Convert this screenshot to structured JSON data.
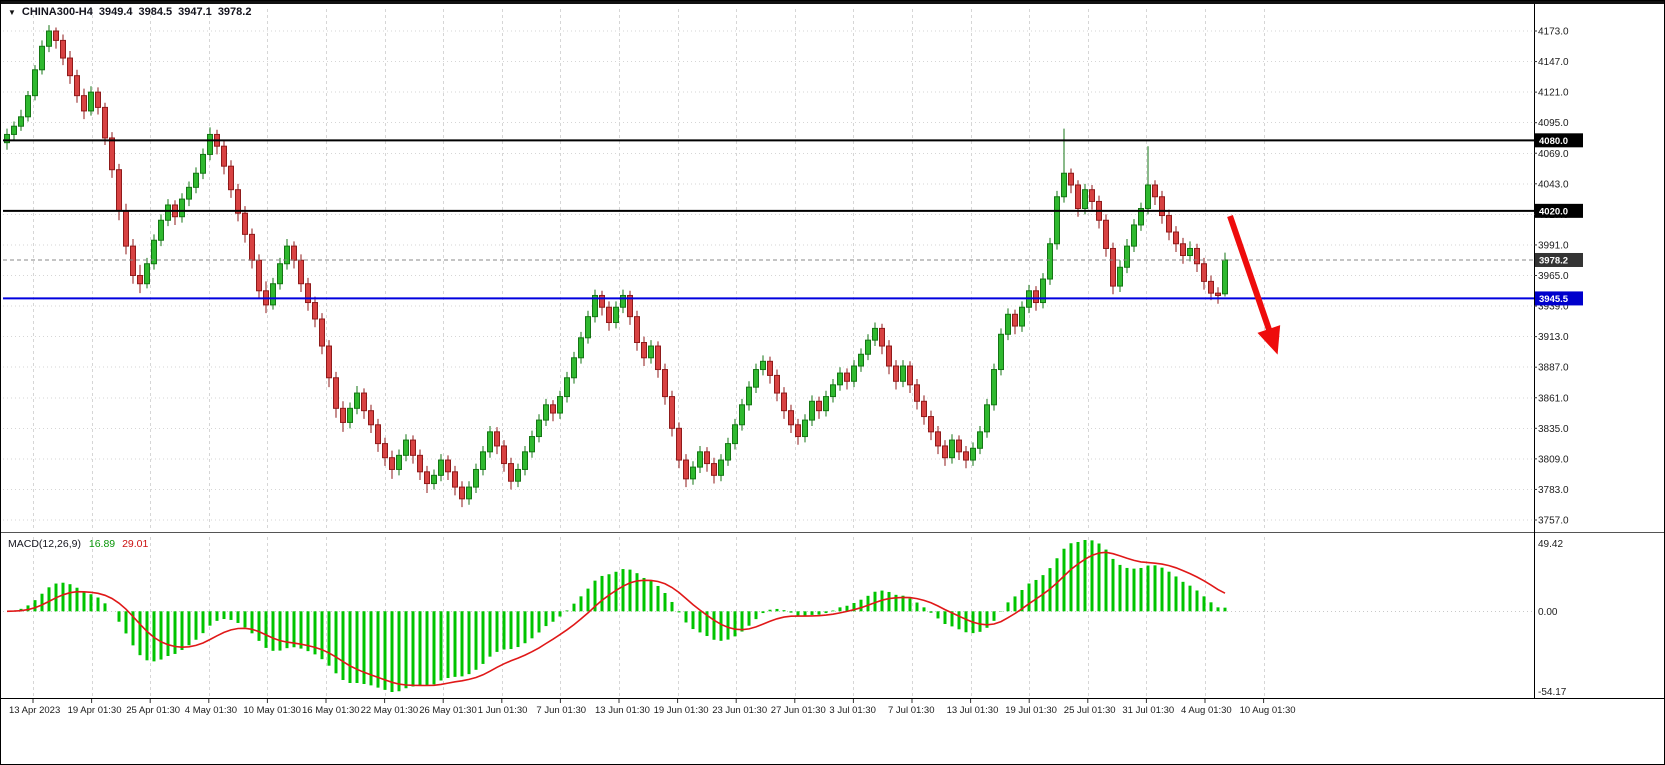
{
  "header": {
    "symbol": "CHINA300-H4",
    "open": "3949.4",
    "high": "3984.5",
    "low": "3947.1",
    "close": "3978.2"
  },
  "macd": {
    "label": "MACD(12,26,9)",
    "value_main": "16.89",
    "value_signal": "29.01",
    "axis": {
      "max": "49.42",
      "zero": "0.00",
      "min": "-54.17"
    }
  },
  "colors": {
    "bull_fill": "#2fb92f",
    "bull_stroke": "#147514",
    "bear_fill": "#d84242",
    "bear_stroke": "#8f1a1a",
    "grid": "#d6d6d6",
    "level_black": "#000000",
    "level_blue": "#0000df",
    "current_line": "#8a8a8a",
    "badge_black": "#000000",
    "badge_blue": "#0000cc",
    "badge_current": "#343434",
    "macd_bar": "#00c400",
    "macd_signal": "#e01818",
    "arrow": "#ee0c0c",
    "axis_text": "#1c1c1c"
  },
  "chart_data": {
    "type": "candlestick",
    "title": "CHINA300-H4",
    "timeframe": "H4",
    "current_bar": {
      "open": 3949.4,
      "high": 3984.5,
      "low": 3947.1,
      "close": 3978.2
    },
    "price_ticks": [
      4173,
      4147,
      4121,
      4095,
      4069,
      4043,
      4017,
      3991,
      3965,
      3939,
      3913,
      3887,
      3861,
      3835,
      3809,
      3783,
      3757
    ],
    "time_labels": [
      "13 Apr 2023",
      "19 Apr 01:30",
      "25 Apr 01:30",
      "4 May 01:30",
      "10 May 01:30",
      "16 May 01:30",
      "22 May 01:30",
      "26 May 01:30",
      "1 Jun 01:30",
      "7 Jun 01:30",
      "13 Jun 01:30",
      "19 Jun 01:30",
      "23 Jun 01:30",
      "27 Jun 01:30",
      "3 Jul 01:30",
      "7 Jul 01:30",
      "13 Jul 01:30",
      "19 Jul 01:30",
      "25 Jul 01:30",
      "31 Jul 01:30",
      "4 Aug 01:30",
      "10 Aug 01:30"
    ],
    "levels": [
      {
        "price": 4080.0,
        "label": "4080.0",
        "type": "hline-black"
      },
      {
        "price": 4020.0,
        "label": "4020.0",
        "type": "hline-black"
      },
      {
        "price": 3945.5,
        "label": "3945.5",
        "type": "hline-blue"
      },
      {
        "price": 3978.2,
        "label": "3978.2",
        "type": "current-price"
      }
    ],
    "indicator": {
      "name": "MACD",
      "fast": 12,
      "slow": 26,
      "signal": 9,
      "axis_max": "49.42",
      "axis_zero": "0.00",
      "axis_min": "-54.17"
    },
    "annotations": [
      {
        "type": "trend-arrow",
        "direction": "down-right",
        "color": "#ee0c0c"
      }
    ],
    "candles": [
      [
        4078,
        4090,
        4072,
        4085
      ],
      [
        4085,
        4096,
        4080,
        4092
      ],
      [
        4092,
        4106,
        4088,
        4100
      ],
      [
        4100,
        4122,
        4096,
        4118
      ],
      [
        4118,
        4144,
        4114,
        4140
      ],
      [
        4140,
        4165,
        4136,
        4160
      ],
      [
        4160,
        4178,
        4155,
        4173
      ],
      [
        4173,
        4176,
        4158,
        4165
      ],
      [
        4165,
        4170,
        4144,
        4150
      ],
      [
        4150,
        4156,
        4128,
        4135
      ],
      [
        4135,
        4140,
        4112,
        4118
      ],
      [
        4118,
        4124,
        4098,
        4105
      ],
      [
        4105,
        4126,
        4101,
        4121
      ],
      [
        4121,
        4125,
        4102,
        4108
      ],
      [
        4108,
        4112,
        4076,
        4082
      ],
      [
        4082,
        4087,
        4048,
        4055
      ],
      [
        4055,
        4060,
        4012,
        4020
      ],
      [
        4020,
        4026,
        3983,
        3990
      ],
      [
        3990,
        3996,
        3958,
        3965
      ],
      [
        3965,
        3974,
        3950,
        3958
      ],
      [
        3958,
        3980,
        3954,
        3975
      ],
      [
        3975,
        4000,
        3970,
        3995
      ],
      [
        3995,
        4017,
        3990,
        4012
      ],
      [
        4012,
        4030,
        4007,
        4025
      ],
      [
        4025,
        4029,
        4008,
        4015
      ],
      [
        4015,
        4035,
        4010,
        4030
      ],
      [
        4030,
        4045,
        4024,
        4040
      ],
      [
        4040,
        4057,
        4035,
        4052
      ],
      [
        4052,
        4073,
        4047,
        4068
      ],
      [
        4068,
        4091,
        4063,
        4085
      ],
      [
        4085,
        4089,
        4068,
        4075
      ],
      [
        4075,
        4080,
        4051,
        4058
      ],
      [
        4058,
        4063,
        4031,
        4038
      ],
      [
        4038,
        4043,
        4011,
        4018
      ],
      [
        4018,
        4024,
        3993,
        4000
      ],
      [
        4000,
        4005,
        3971,
        3978
      ],
      [
        3978,
        3983,
        3945,
        3952
      ],
      [
        3952,
        3960,
        3933,
        3940
      ],
      [
        3940,
        3963,
        3936,
        3958
      ],
      [
        3958,
        3980,
        3953,
        3975
      ],
      [
        3975,
        3996,
        3970,
        3990
      ],
      [
        3990,
        3994,
        3971,
        3978
      ],
      [
        3978,
        3983,
        3951,
        3958
      ],
      [
        3958,
        3963,
        3935,
        3942
      ],
      [
        3942,
        3947,
        3921,
        3928
      ],
      [
        3928,
        3933,
        3898,
        3905
      ],
      [
        3905,
        3910,
        3870,
        3878
      ],
      [
        3878,
        3883,
        3844,
        3852
      ],
      [
        3852,
        3858,
        3832,
        3840
      ],
      [
        3840,
        3857,
        3835,
        3852
      ],
      [
        3852,
        3871,
        3847,
        3865
      ],
      [
        3865,
        3869,
        3843,
        3850
      ],
      [
        3850,
        3855,
        3831,
        3838
      ],
      [
        3838,
        3843,
        3815,
        3822
      ],
      [
        3822,
        3827,
        3803,
        3810
      ],
      [
        3810,
        3816,
        3792,
        3800
      ],
      [
        3800,
        3817,
        3795,
        3812
      ],
      [
        3812,
        3830,
        3807,
        3825
      ],
      [
        3825,
        3829,
        3805,
        3812
      ],
      [
        3812,
        3817,
        3791,
        3798
      ],
      [
        3798,
        3803,
        3780,
        3788
      ],
      [
        3788,
        3800,
        3783,
        3795
      ],
      [
        3795,
        3813,
        3790,
        3808
      ],
      [
        3808,
        3812,
        3791,
        3798
      ],
      [
        3798,
        3803,
        3778,
        3785
      ],
      [
        3785,
        3790,
        3768,
        3775
      ],
      [
        3775,
        3790,
        3770,
        3785
      ],
      [
        3785,
        3805,
        3780,
        3800
      ],
      [
        3800,
        3820,
        3795,
        3815
      ],
      [
        3815,
        3837,
        3810,
        3832
      ],
      [
        3832,
        3836,
        3813,
        3820
      ],
      [
        3820,
        3825,
        3798,
        3805
      ],
      [
        3805,
        3810,
        3783,
        3790
      ],
      [
        3790,
        3805,
        3785,
        3800
      ],
      [
        3800,
        3820,
        3795,
        3815
      ],
      [
        3815,
        3833,
        3810,
        3828
      ],
      [
        3828,
        3847,
        3823,
        3842
      ],
      [
        3842,
        3860,
        3837,
        3855
      ],
      [
        3855,
        3859,
        3841,
        3848
      ],
      [
        3848,
        3867,
        3843,
        3862
      ],
      [
        3862,
        3883,
        3857,
        3878
      ],
      [
        3878,
        3900,
        3873,
        3895
      ],
      [
        3895,
        3917,
        3890,
        3912
      ],
      [
        3912,
        3935,
        3907,
        3930
      ],
      [
        3930,
        3953,
        3925,
        3948
      ],
      [
        3948,
        3952,
        3931,
        3938
      ],
      [
        3938,
        3943,
        3918,
        3925
      ],
      [
        3925,
        3943,
        3920,
        3938
      ],
      [
        3938,
        3953,
        3933,
        3948
      ],
      [
        3948,
        3952,
        3923,
        3930
      ],
      [
        3930,
        3935,
        3901,
        3908
      ],
      [
        3908,
        3913,
        3888,
        3895
      ],
      [
        3895,
        3910,
        3890,
        3905
      ],
      [
        3905,
        3909,
        3878,
        3885
      ],
      [
        3885,
        3890,
        3855,
        3862
      ],
      [
        3862,
        3867,
        3828,
        3835
      ],
      [
        3835,
        3840,
        3801,
        3808
      ],
      [
        3808,
        3813,
        3785,
        3792
      ],
      [
        3792,
        3807,
        3787,
        3802
      ],
      [
        3802,
        3820,
        3797,
        3815
      ],
      [
        3815,
        3819,
        3798,
        3805
      ],
      [
        3805,
        3810,
        3788,
        3795
      ],
      [
        3795,
        3813,
        3790,
        3808
      ],
      [
        3808,
        3827,
        3803,
        3822
      ],
      [
        3822,
        3843,
        3817,
        3838
      ],
      [
        3838,
        3860,
        3833,
        3855
      ],
      [
        3855,
        3875,
        3850,
        3870
      ],
      [
        3870,
        3890,
        3865,
        3885
      ],
      [
        3885,
        3897,
        3880,
        3892
      ],
      [
        3892,
        3896,
        3873,
        3880
      ],
      [
        3880,
        3885,
        3858,
        3865
      ],
      [
        3865,
        3870,
        3843,
        3850
      ],
      [
        3850,
        3855,
        3831,
        3838
      ],
      [
        3838,
        3843,
        3821,
        3828
      ],
      [
        3828,
        3847,
        3823,
        3842
      ],
      [
        3842,
        3863,
        3837,
        3858
      ],
      [
        3858,
        3862,
        3843,
        3850
      ],
      [
        3850,
        3867,
        3845,
        3862
      ],
      [
        3862,
        3877,
        3857,
        3872
      ],
      [
        3872,
        3887,
        3867,
        3882
      ],
      [
        3882,
        3886,
        3868,
        3875
      ],
      [
        3875,
        3893,
        3870,
        3888
      ],
      [
        3888,
        3903,
        3883,
        3898
      ],
      [
        3898,
        3915,
        3893,
        3910
      ],
      [
        3910,
        3925,
        3905,
        3920
      ],
      [
        3920,
        3924,
        3898,
        3905
      ],
      [
        3905,
        3910,
        3881,
        3888
      ],
      [
        3888,
        3893,
        3868,
        3875
      ],
      [
        3875,
        3893,
        3870,
        3888
      ],
      [
        3888,
        3892,
        3865,
        3872
      ],
      [
        3872,
        3877,
        3851,
        3858
      ],
      [
        3858,
        3863,
        3838,
        3845
      ],
      [
        3845,
        3850,
        3825,
        3832
      ],
      [
        3832,
        3837,
        3813,
        3820
      ],
      [
        3820,
        3825,
        3803,
        3810
      ],
      [
        3810,
        3830,
        3805,
        3825
      ],
      [
        3825,
        3829,
        3808,
        3815
      ],
      [
        3815,
        3820,
        3801,
        3808
      ],
      [
        3808,
        3823,
        3803,
        3818
      ],
      [
        3818,
        3837,
        3813,
        3832
      ],
      [
        3832,
        3860,
        3827,
        3855
      ],
      [
        3855,
        3890,
        3850,
        3885
      ],
      [
        3885,
        3920,
        3880,
        3915
      ],
      [
        3915,
        3937,
        3910,
        3932
      ],
      [
        3932,
        3936,
        3915,
        3922
      ],
      [
        3922,
        3943,
        3917,
        3938
      ],
      [
        3938,
        3957,
        3933,
        3952
      ],
      [
        3952,
        3956,
        3935,
        3942
      ],
      [
        3942,
        3967,
        3937,
        3962
      ],
      [
        3962,
        3997,
        3957,
        3992
      ],
      [
        3992,
        4037,
        3987,
        4032
      ],
      [
        4032,
        4090,
        4027,
        4052
      ],
      [
        4052,
        4056,
        4035,
        4042
      ],
      [
        4042,
        4046,
        4015,
        4022
      ],
      [
        4022,
        4043,
        4017,
        4038
      ],
      [
        4038,
        4042,
        4021,
        4028
      ],
      [
        4028,
        4033,
        4005,
        4012
      ],
      [
        4012,
        4017,
        3981,
        3988
      ],
      [
        3988,
        3993,
        3949,
        3956
      ],
      [
        3956,
        3978,
        3951,
        3972
      ],
      [
        3972,
        3996,
        3967,
        3990
      ],
      [
        3990,
        4013,
        3985,
        4008
      ],
      [
        4008,
        4027,
        4003,
        4022
      ],
      [
        4022,
        4075,
        4017,
        4042
      ],
      [
        4042,
        4046,
        4025,
        4032
      ],
      [
        4032,
        4037,
        4009,
        4016
      ],
      [
        4016,
        4021,
        3995,
        4002
      ],
      [
        4002,
        4007,
        3985,
        3992
      ],
      [
        3992,
        3997,
        3975,
        3982
      ],
      [
        3982,
        3994,
        3977,
        3988
      ],
      [
        3988,
        3992,
        3968,
        3975
      ],
      [
        3975,
        3980,
        3953,
        3960
      ],
      [
        3960,
        3965,
        3944,
        3950
      ],
      [
        3950,
        3955,
        3941,
        3948
      ],
      [
        3949.4,
        3984.5,
        3947.1,
        3978.2
      ]
    ]
  }
}
